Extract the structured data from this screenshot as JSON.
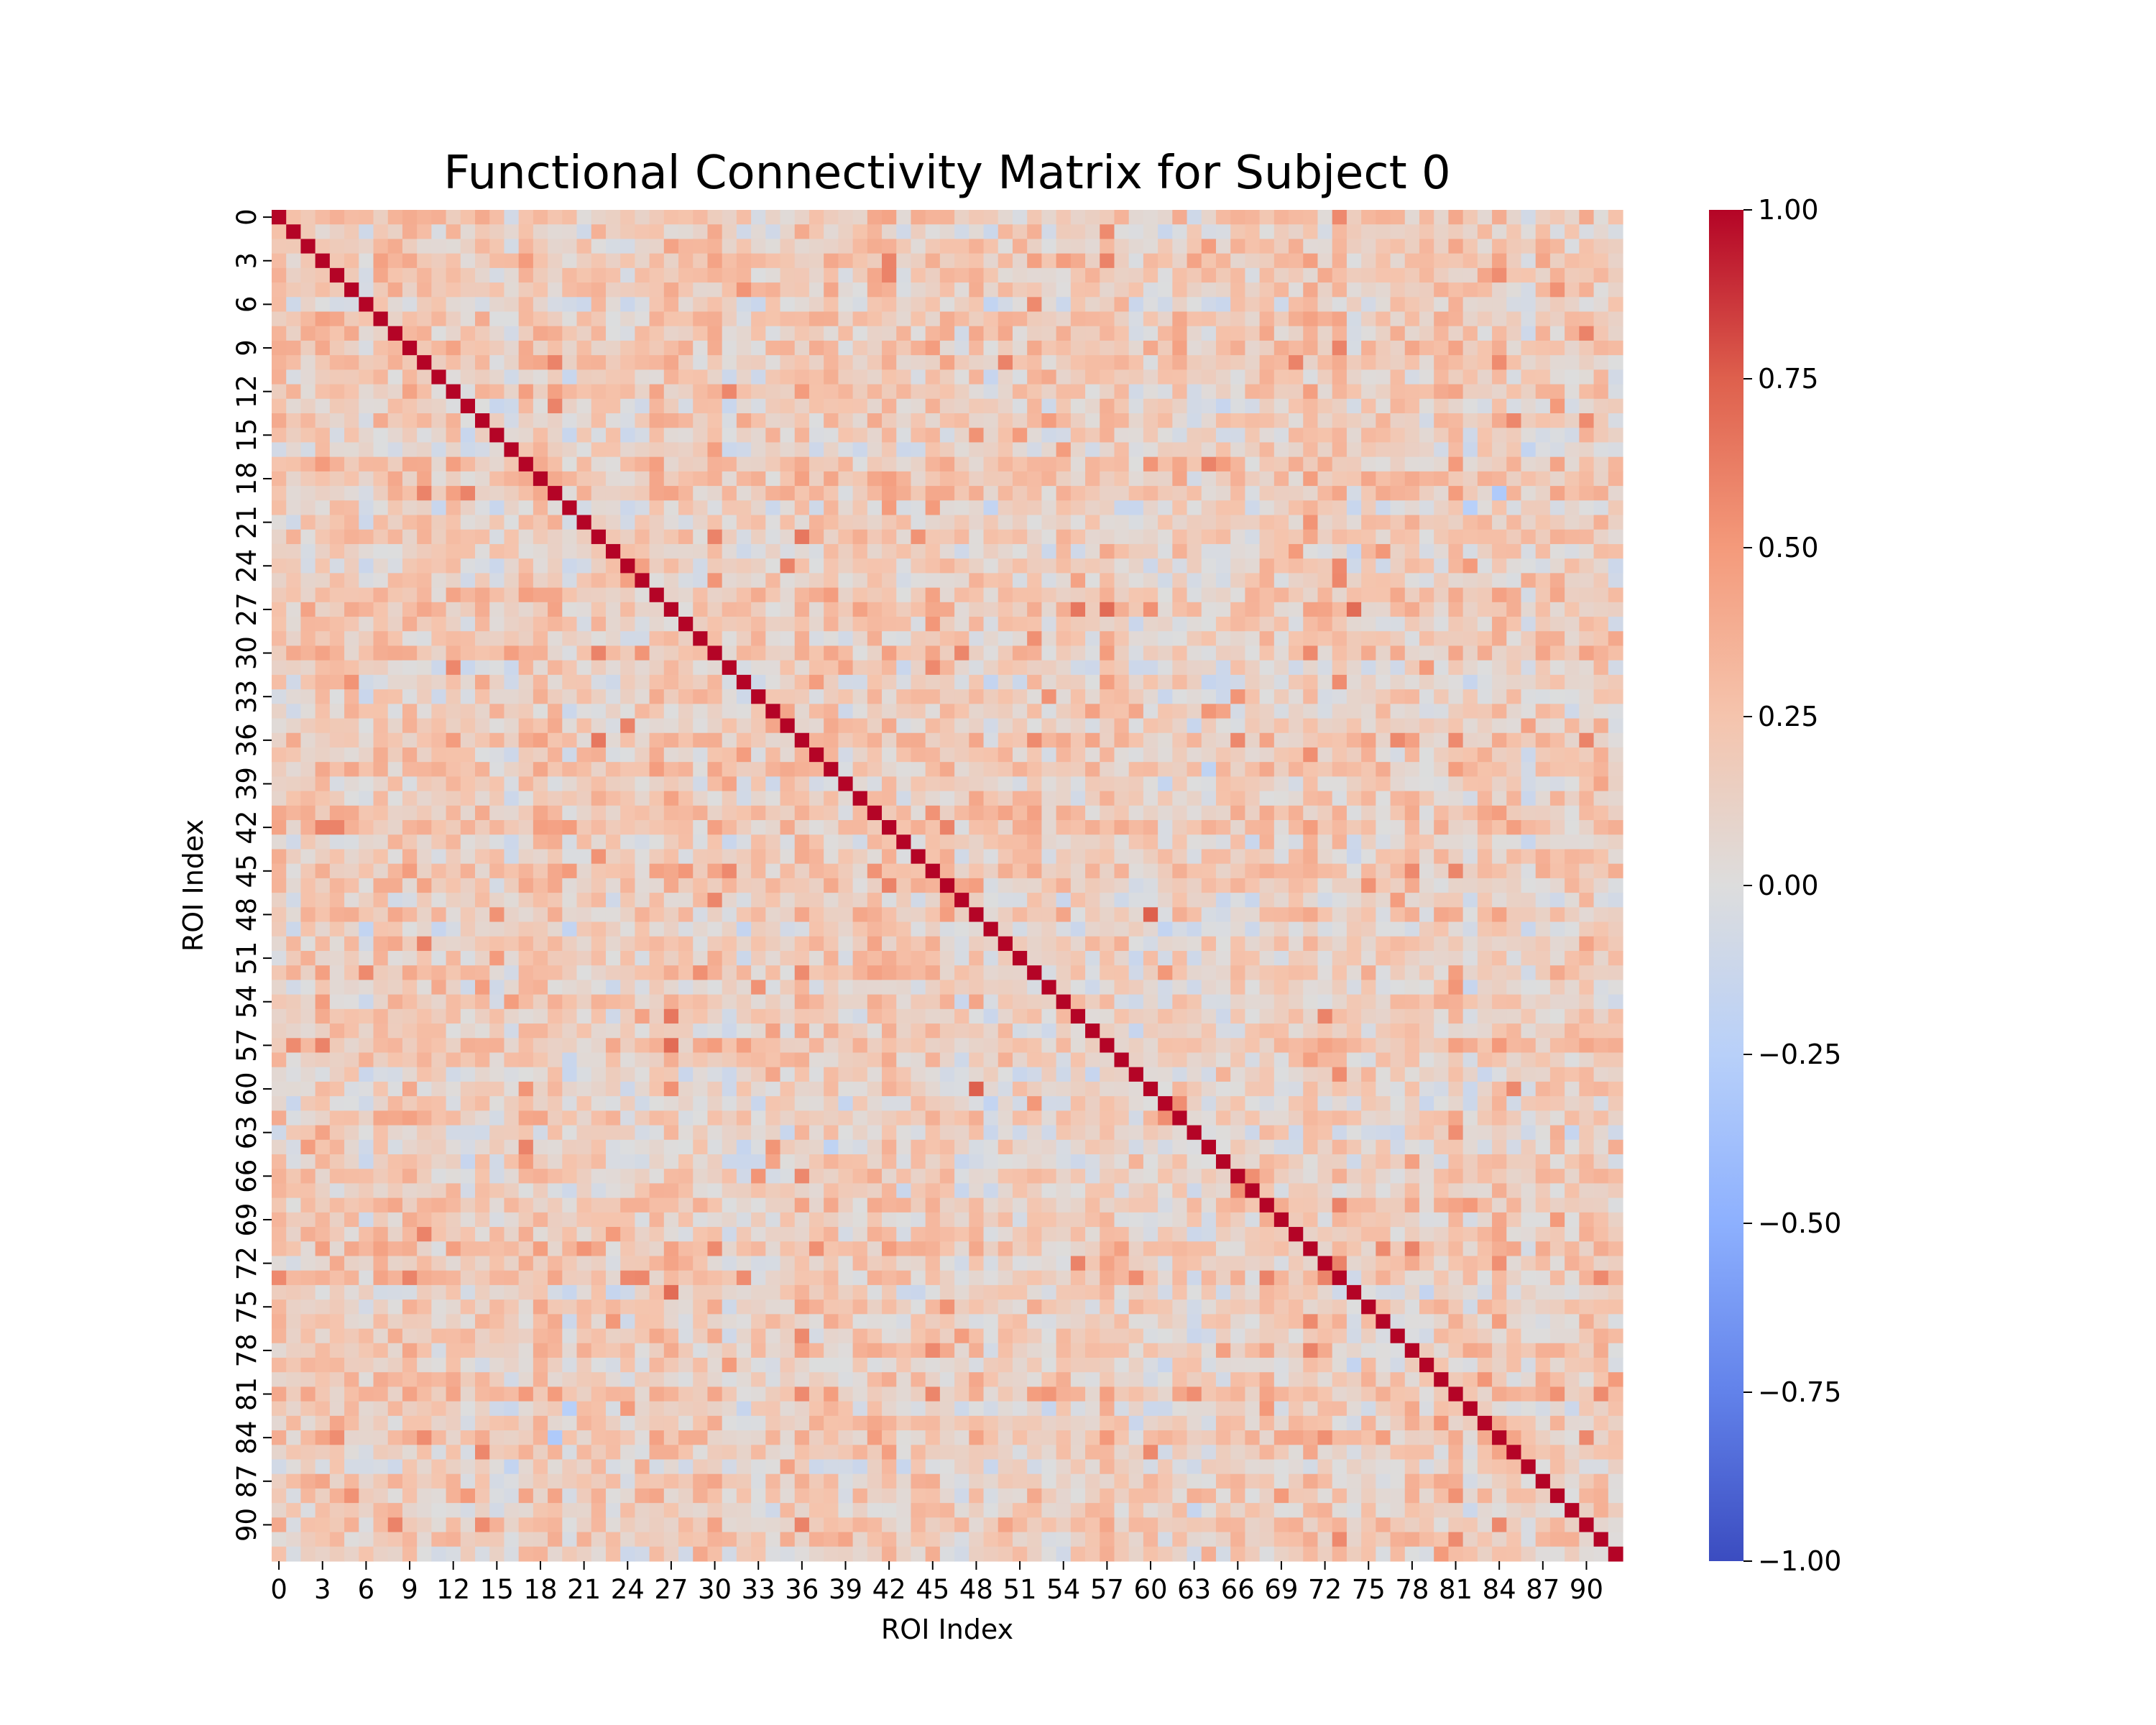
{
  "chart_data": {
    "type": "heatmap",
    "title": "Functional Connectivity Matrix for Subject 0",
    "xlabel": "ROI Index",
    "ylabel": "ROI Index",
    "n_rois": 93,
    "tick_labels": [
      "0",
      "3",
      "6",
      "9",
      "12",
      "15",
      "18",
      "21",
      "24",
      "27",
      "30",
      "33",
      "36",
      "39",
      "42",
      "45",
      "48",
      "51",
      "54",
      "57",
      "60",
      "63",
      "66",
      "69",
      "72",
      "75",
      "78",
      "81",
      "84",
      "87",
      "90"
    ],
    "colormap": "coolwarm",
    "vmin": -1.0,
    "vmax": 1.0,
    "colorbar_ticks": [
      "1.00",
      "0.75",
      "0.50",
      "0.25",
      "0.00",
      "−0.25",
      "−0.50",
      "−0.75",
      "−1.00"
    ],
    "diagonal_value": 1.0,
    "notable_values": [
      {
        "row": 27,
        "col": 57,
        "value": 0.7
      },
      {
        "row": 27,
        "col": 74,
        "value": 0.7
      },
      {
        "row": 48,
        "col": 60,
        "value": 0.75
      },
      {
        "row": 22,
        "col": 36,
        "value": 0.65
      },
      {
        "row": 24,
        "col": 35,
        "value": 0.6
      },
      {
        "row": 55,
        "col": 27,
        "value": 0.65
      },
      {
        "row": 72,
        "col": 55,
        "value": 0.6
      },
      {
        "row": 73,
        "col": 72,
        "value": 0.6
      },
      {
        "row": 62,
        "col": 61,
        "value": 0.55
      },
      {
        "row": 81,
        "col": 63,
        "value": 0.55
      },
      {
        "row": 13,
        "col": 88,
        "value": 0.5
      },
      {
        "row": 69,
        "col": 88,
        "value": 0.5
      },
      {
        "row": 84,
        "col": 19,
        "value": -0.3
      },
      {
        "row": 20,
        "col": 82,
        "value": -0.25
      },
      {
        "row": 64,
        "col": 38,
        "value": -0.2
      }
    ],
    "colors": {
      "low": "#3b4cc0",
      "mid": "#dddddd",
      "high": "#b40426"
    }
  }
}
